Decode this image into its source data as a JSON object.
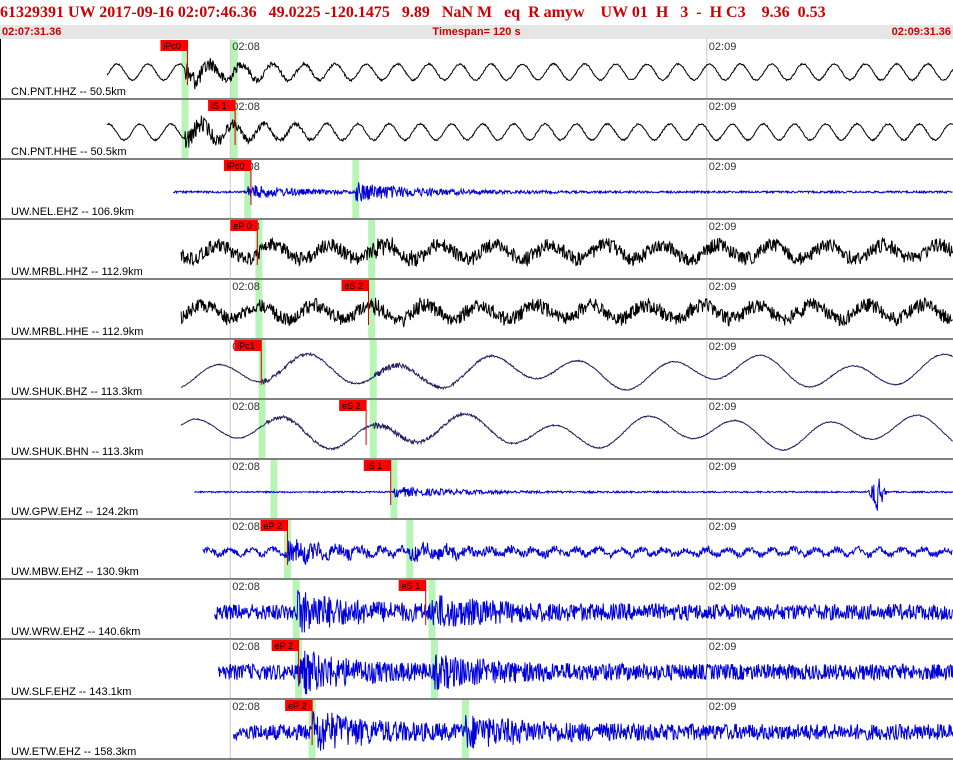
{
  "header": {
    "title": "61329391 UW 2017-09-16 02:07:46.36   49.0225 -120.1475   9.89   NaN M   eq  R amyw    UW 01  H   3  -  H C3    9.36  0.53",
    "start_time": "02:07:31.36",
    "timespan": "Timespan= 120 s",
    "end_time": "02:09:31.36"
  },
  "colors": {
    "title": "#cc0000",
    "pick_bg": "#ff0000",
    "pick_window": "#b6f5b6",
    "trace_black": "#000000",
    "trace_blue": "#0000dd",
    "trace_navy": "#202060",
    "time_bar": "#e6e6e6"
  },
  "chart_data": {
    "type": "line",
    "title": "",
    "x_range_s": [
      0,
      120
    ],
    "x_ticks": [
      {
        "t": 29,
        "label": "02:08"
      },
      {
        "t": 89,
        "label": "02:09"
      }
    ],
    "grid": true,
    "traces": [
      {
        "label": "CN.PNT.HHZ -- 50.5km",
        "color": "black",
        "start_s": 13.5,
        "picks": [
          {
            "t": 23.6,
            "label": "iPc0"
          }
        ],
        "windows": [
          23.3,
          29.5
        ],
        "style": "swell_noisy"
      },
      {
        "label": "CN.PNT.HHE -- 50.5km",
        "color": "black",
        "start_s": 13.5,
        "picks": [
          {
            "t": 29.6,
            "label": "iS 1"
          }
        ],
        "windows": [
          23.3,
          29.5
        ],
        "style": "swell_noisy"
      },
      {
        "label": "UW.NEL.EHZ -- 106.9km",
        "color": "blue",
        "start_s": 21.8,
        "picks": [
          {
            "t": 31.6,
            "label": "iPc0"
          }
        ],
        "windows": [
          31.2,
          44.8
        ],
        "style": "flat_burst"
      },
      {
        "label": "UW.MRBL.HHZ -- 112.9km",
        "color": "black",
        "start_s": 22.8,
        "picks": [
          {
            "t": 32.4,
            "label": "eP 0"
          }
        ],
        "windows": [
          32.6,
          46.8
        ],
        "style": "swell_heavy"
      },
      {
        "label": "UW.MRBL.HHE -- 112.9km",
        "color": "black",
        "start_s": 22.8,
        "picks": [
          {
            "t": 46.4,
            "label": "eS 2"
          }
        ],
        "windows": [
          32.6,
          46.8
        ],
        "style": "swell_heavy"
      },
      {
        "label": "UW.SHUK.BHZ -- 113.3km",
        "color": "navy",
        "start_s": 22.8,
        "picks": [
          {
            "t": 32.9,
            "label": "iPc1"
          }
        ],
        "windows": [
          33.0,
          47.0
        ],
        "style": "long_period"
      },
      {
        "label": "UW.SHUK.BHN -- 113.3km",
        "color": "navy",
        "start_s": 22.8,
        "picks": [
          {
            "t": 46.1,
            "label": "eS 2"
          }
        ],
        "windows": [
          33.0,
          47.0
        ],
        "style": "long_period"
      },
      {
        "label": "UW.GPW.EHZ -- 124.2km",
        "color": "blue",
        "start_s": 24.5,
        "picks": [
          {
            "t": 49.2,
            "label": "iS 1"
          }
        ],
        "windows": [
          34.5,
          49.6
        ],
        "style": "flat_spike"
      },
      {
        "label": "UW.MBW.EHZ -- 130.9km",
        "color": "blue",
        "start_s": 25.5,
        "picks": [
          {
            "t": 36.2,
            "label": "eP 2"
          }
        ],
        "windows": [
          36.2,
          51.6
        ],
        "style": "noisy_burst"
      },
      {
        "label": "UW.WRW.EHZ -- 140.6km",
        "color": "blue",
        "start_s": 27.0,
        "picks": [
          {
            "t": 53.6,
            "label": "eS 1"
          }
        ],
        "windows": [
          37.3,
          54.4
        ],
        "style": "heavy_burst"
      },
      {
        "label": "UW.SLF.EHZ -- 143.1km",
        "color": "blue",
        "start_s": 27.5,
        "picks": [
          {
            "t": 37.6,
            "label": "eP 2"
          }
        ],
        "windows": [
          37.6,
          54.7
        ],
        "style": "heavy_burst"
      },
      {
        "label": "UW.ETW.EHZ -- 158.3km",
        "color": "blue",
        "start_s": 29.4,
        "picks": [
          {
            "t": 39.3,
            "label": "eP 2"
          }
        ],
        "windows": [
          39.3,
          58.6
        ],
        "style": "heavy_burst"
      }
    ]
  }
}
